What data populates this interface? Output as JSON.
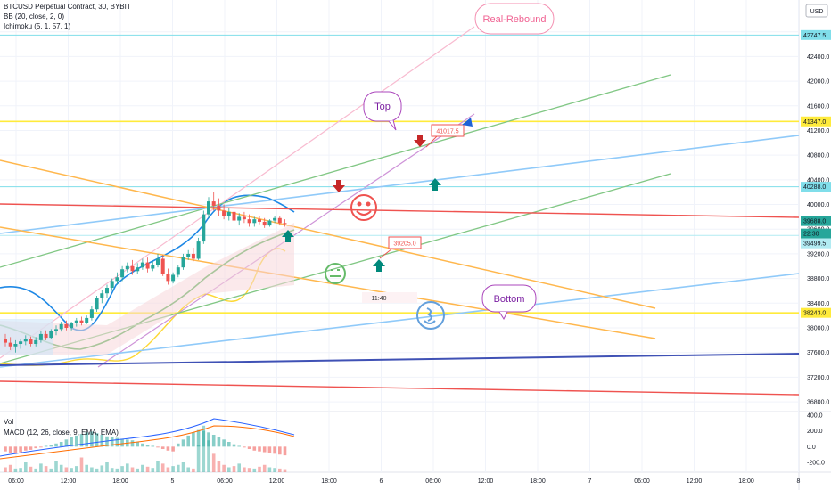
{
  "header": {
    "symbol_line": "BTCUSD Perpetual Contract, 30, BYBIT",
    "indicator_bb": "BB (20, close, 2, 0)",
    "indicator_ichimoku": "Ichimoku (5, 1, 57, 1)",
    "currency_badge": "USD"
  },
  "sub_pane": {
    "vol_label": "Vol",
    "macd_label": "MACD (12, 26, close, 9, EMA, EMA)",
    "tick_labels": [
      "400.0",
      "200.0",
      "0.0",
      "-200.0"
    ]
  },
  "price_tags": [
    {
      "label": "42747.5",
      "color": "#80deea"
    },
    {
      "label": "41347.0",
      "color": "#ffeb3b"
    },
    {
      "label": "40288.0",
      "color": "#80deea"
    },
    {
      "label": "39688.0",
      "color": "#26a69a"
    },
    {
      "label": "22:30",
      "color": "#26a69a"
    },
    {
      "label": "39499.5",
      "color": "#b2ebf2"
    },
    {
      "label": "38243.0",
      "color": "#ffeb3b"
    }
  ],
  "annotations": {
    "real_rebound": "Real-Rebound",
    "top": "Top",
    "bottom": "Bottom",
    "tag_upper": "41017.5",
    "tag_lower": "39205.0",
    "time_marker": "11:40"
  },
  "chart_data": {
    "type": "candlestick",
    "y_axis_ticks": [
      "4...",
      "42400.0",
      "42000.0",
      "41600.0",
      "41200.0",
      "40800.0",
      "40400.0",
      "40000.0",
      "39600.0",
      "39200.0",
      "38800.0",
      "38400.0",
      "38000.0",
      "37600.0",
      "37200.0",
      "36800.0"
    ],
    "x_axis_ticks": [
      "06:00",
      "12:00",
      "18:00",
      "5",
      "06:00",
      "12:00",
      "18:00",
      "6",
      "06:00",
      "12:00",
      "18:00",
      "7",
      "06:00",
      "12:00",
      "18:00",
      "8"
    ],
    "ylim": [
      36700,
      43200
    ],
    "macd_ylim": [
      -300,
      420
    ],
    "candles_ohlc": [
      [
        37820,
        37900,
        37700,
        37760
      ],
      [
        37760,
        37850,
        37640,
        37700
      ],
      [
        37700,
        37800,
        37600,
        37740
      ],
      [
        37740,
        37820,
        37660,
        37780
      ],
      [
        37780,
        37880,
        37720,
        37820
      ],
      [
        37820,
        37860,
        37700,
        37740
      ],
      [
        37740,
        37850,
        37700,
        37800
      ],
      [
        37800,
        37950,
        37760,
        37900
      ],
      [
        37900,
        37960,
        37800,
        37840
      ],
      [
        37840,
        37980,
        37820,
        37950
      ],
      [
        37950,
        38040,
        37880,
        37980
      ],
      [
        37980,
        38100,
        37940,
        38060
      ],
      [
        38060,
        38120,
        37960,
        38000
      ],
      [
        38000,
        38100,
        37960,
        38080
      ],
      [
        38080,
        38160,
        38020,
        38120
      ],
      [
        38120,
        38180,
        38040,
        38080
      ],
      [
        38080,
        38200,
        38060,
        38160
      ],
      [
        38160,
        38350,
        38120,
        38300
      ],
      [
        38300,
        38520,
        38260,
        38480
      ],
      [
        38480,
        38620,
        38400,
        38560
      ],
      [
        38560,
        38700,
        38480,
        38650
      ],
      [
        38650,
        38800,
        38600,
        38760
      ],
      [
        38760,
        38900,
        38700,
        38820
      ],
      [
        38820,
        39000,
        38760,
        38950
      ],
      [
        38950,
        39060,
        38900,
        39000
      ],
      [
        39000,
        39100,
        38860,
        38920
      ],
      [
        38920,
        39050,
        38880,
        38980
      ],
      [
        38980,
        39120,
        38940,
        39060
      ],
      [
        39060,
        39140,
        38900,
        38960
      ],
      [
        38960,
        39080,
        38920,
        39020
      ],
      [
        39020,
        39200,
        38980,
        39120
      ],
      [
        39120,
        39180,
        38840,
        38880
      ],
      [
        38880,
        38960,
        38700,
        38760
      ],
      [
        38760,
        38900,
        38720,
        38860
      ],
      [
        38860,
        39020,
        38820,
        38980
      ],
      [
        38980,
        39200,
        38940,
        39150
      ],
      [
        39150,
        39260,
        39100,
        39200
      ],
      [
        39200,
        39300,
        39080,
        39120
      ],
      [
        39120,
        39460,
        39100,
        39400
      ],
      [
        39400,
        39900,
        39360,
        39840
      ],
      [
        39840,
        40120,
        39780,
        40050
      ],
      [
        40050,
        40200,
        39900,
        39980
      ],
      [
        39980,
        40100,
        39820,
        39900
      ],
      [
        39900,
        40000,
        39760,
        39820
      ],
      [
        39820,
        39940,
        39740,
        39880
      ],
      [
        39880,
        39960,
        39700,
        39740
      ],
      [
        39740,
        39860,
        39660,
        39800
      ],
      [
        39800,
        39880,
        39700,
        39760
      ],
      [
        39760,
        39840,
        39640,
        39700
      ],
      [
        39700,
        39800,
        39640,
        39760
      ],
      [
        39760,
        39820,
        39680,
        39720
      ],
      [
        39720,
        39780,
        39620,
        39660
      ],
      [
        39660,
        39760,
        39640,
        39740
      ],
      [
        39740,
        39820,
        39700,
        39780
      ],
      [
        39780,
        39820,
        39660,
        39700
      ],
      [
        39700,
        39760,
        39640,
        39688
      ]
    ],
    "horizontal_levels": [
      42747.5,
      41347.0,
      40288.0,
      39499.5,
      38243.0
    ],
    "macd_hist": [
      -60,
      -80,
      -90,
      -70,
      -50,
      -40,
      -20,
      -10,
      10,
      20,
      40,
      60,
      90,
      120,
      140,
      160,
      180,
      190,
      170,
      150,
      130,
      120,
      110,
      100,
      90,
      80,
      60,
      40,
      20,
      10,
      -10,
      -30,
      -50,
      -60,
      40,
      90,
      140,
      180,
      210,
      200,
      180,
      150,
      120,
      90,
      60,
      30,
      10,
      -10,
      -30,
      -50,
      -60,
      -70,
      -80,
      -90,
      -100,
      -110
    ],
    "volume": [
      40,
      60,
      30,
      35,
      80,
      45,
      30,
      70,
      50,
      30,
      90,
      60,
      40,
      35,
      50,
      120,
      60,
      40,
      30,
      55,
      80,
      35,
      30,
      50,
      70,
      40,
      30,
      60,
      45,
      35,
      90,
      70,
      40,
      50,
      60,
      80,
      40,
      30,
      220,
      380,
      260,
      150,
      90,
      60,
      40,
      50,
      70,
      40,
      35,
      30,
      45,
      60,
      40,
      35,
      30,
      25
    ]
  }
}
